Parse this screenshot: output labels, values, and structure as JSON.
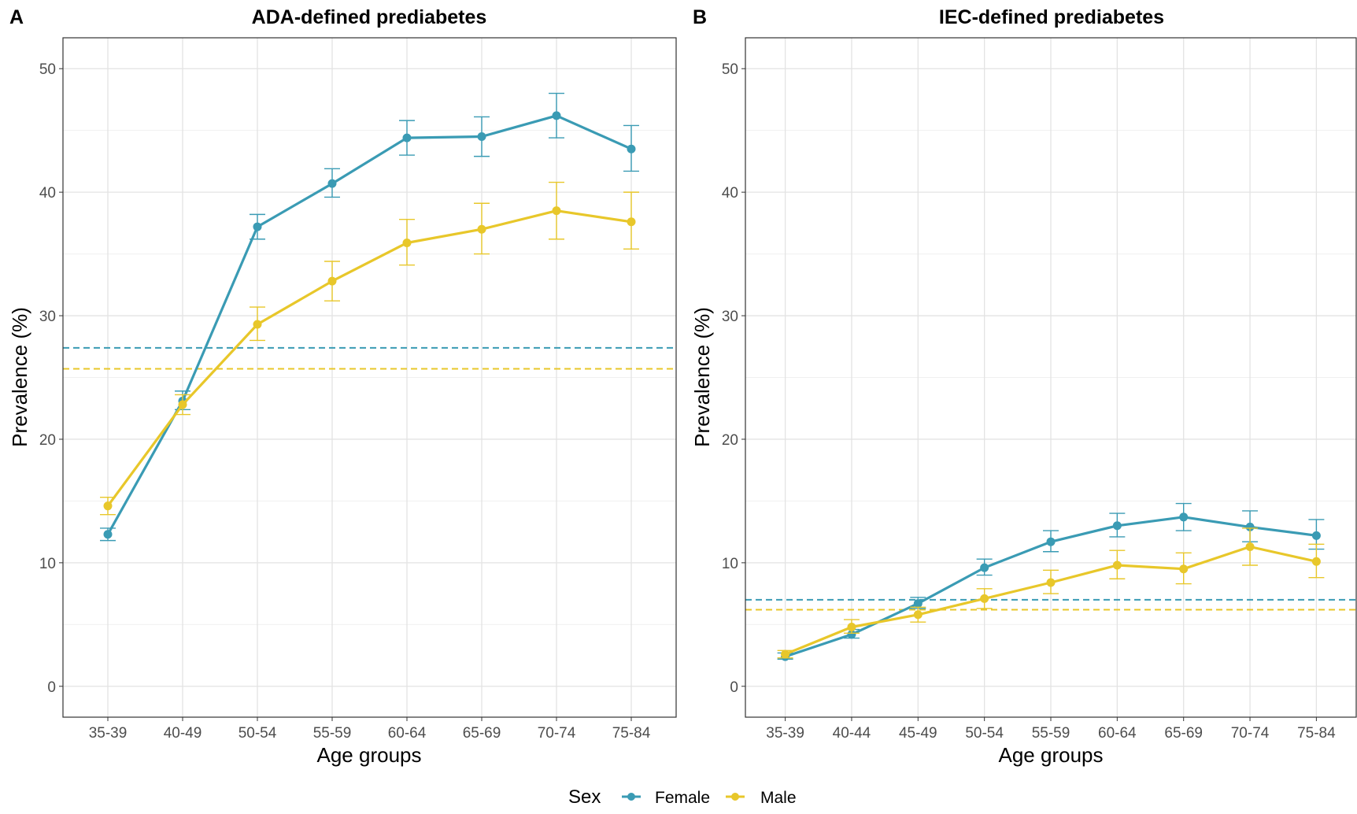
{
  "legend": {
    "title": "Sex",
    "entries": [
      {
        "label": "Female",
        "color": "#3a9bb4"
      },
      {
        "label": "Male",
        "color": "#e8c72a"
      }
    ]
  },
  "chart_data": [
    {
      "type": "line",
      "tag": "A",
      "title": "ADA-defined prediabetes",
      "xlabel": "Age groups",
      "ylabel": "Prevalence (%)",
      "ylim": [
        -2.5,
        52.5
      ],
      "yticks": [
        0,
        10,
        20,
        30,
        40,
        50
      ],
      "grid": true,
      "categories": [
        "35-39",
        "40-49",
        "50-54",
        "55-59",
        "60-64",
        "65-69",
        "70-74",
        "75-84"
      ],
      "series": [
        {
          "name": "Female",
          "color": "#3a9bb4",
          "values": [
            12.3,
            23.1,
            37.2,
            40.7,
            44.4,
            44.5,
            46.2,
            43.5
          ],
          "lower": [
            11.8,
            22.4,
            36.2,
            39.6,
            43.0,
            42.9,
            44.4,
            41.7
          ],
          "upper": [
            12.8,
            23.9,
            38.2,
            41.9,
            45.8,
            46.1,
            48.0,
            45.4
          ],
          "overall": 27.4
        },
        {
          "name": "Male",
          "color": "#e8c72a",
          "values": [
            14.6,
            22.8,
            29.3,
            32.8,
            35.9,
            37.0,
            38.5,
            37.6
          ],
          "lower": [
            13.9,
            22.0,
            28.0,
            31.2,
            34.1,
            35.0,
            36.2,
            35.4
          ],
          "upper": [
            15.3,
            23.6,
            30.7,
            34.4,
            37.8,
            39.1,
            40.8,
            40.0
          ],
          "overall": 25.7
        }
      ]
    },
    {
      "type": "line",
      "tag": "B",
      "title": "IEC-defined prediabetes",
      "xlabel": "Age groups",
      "ylabel": "Prevalence (%)",
      "ylim": [
        -2.5,
        52.5
      ],
      "yticks": [
        0,
        10,
        20,
        30,
        40,
        50
      ],
      "grid": true,
      "categories": [
        "35-39",
        "40-44",
        "45-49",
        "50-54",
        "55-59",
        "60-64",
        "65-69",
        "70-74",
        "75-84"
      ],
      "series": [
        {
          "name": "Female",
          "color": "#3a9bb4",
          "values": [
            2.4,
            4.2,
            6.7,
            9.6,
            11.7,
            13.0,
            13.7,
            12.9,
            12.2
          ],
          "lower": [
            2.2,
            3.9,
            6.3,
            9.0,
            10.9,
            12.1,
            12.6,
            11.7,
            11.1
          ],
          "upper": [
            2.7,
            4.6,
            7.2,
            10.3,
            12.6,
            14.0,
            14.8,
            14.2,
            13.5
          ],
          "overall": 7.0
        },
        {
          "name": "Male",
          "color": "#e8c72a",
          "values": [
            2.6,
            4.8,
            5.8,
            7.1,
            8.4,
            9.8,
            9.5,
            11.3,
            10.1
          ],
          "lower": [
            2.3,
            4.3,
            5.2,
            6.3,
            7.5,
            8.7,
            8.3,
            9.8,
            8.8
          ],
          "upper": [
            2.9,
            5.4,
            6.4,
            7.9,
            9.4,
            11.0,
            10.8,
            12.8,
            11.5
          ],
          "overall": 6.2
        }
      ]
    }
  ]
}
